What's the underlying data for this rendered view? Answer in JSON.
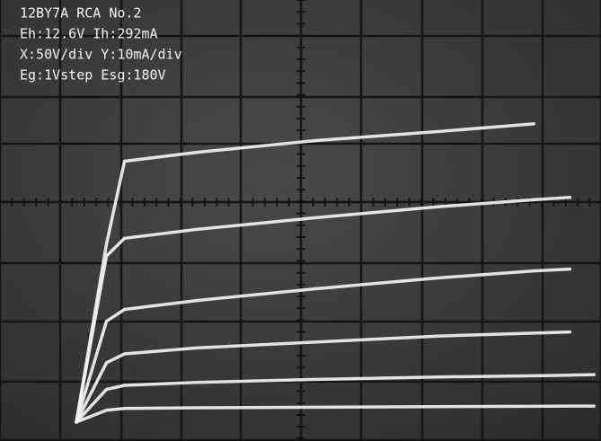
{
  "chart_data": {
    "type": "line",
    "annotations": [
      "12BY7A RCA No.2",
      "Eh:12.6V Ih:292mA",
      "X:50V/div Y:10mA/div",
      "Eg:1Vstep Esg:180V"
    ],
    "x": [
      0,
      25,
      40,
      100,
      200,
      300,
      380,
      410,
      430
    ],
    "series": [
      {
        "color": "#f2f2f2",
        "values": [
          0,
          30,
          44,
          45.5,
          47.5,
          49,
          50.3,
          null,
          null
        ]
      },
      {
        "color": "#f2f2f2",
        "values": [
          0,
          28,
          31,
          32.5,
          34.5,
          36.3,
          37.5,
          37.9,
          null
        ]
      },
      {
        "color": "#f2f2f2",
        "values": [
          0,
          17,
          19,
          20.5,
          22.5,
          24.3,
          25.5,
          25.8,
          null
        ]
      },
      {
        "color": "#f2f2f2",
        "values": [
          0,
          10,
          11.5,
          12.5,
          13.5,
          14.5,
          15,
          15.2,
          null
        ]
      },
      {
        "color": "#f2f2f2",
        "values": [
          0,
          5.5,
          6.2,
          6.7,
          7.2,
          7.6,
          7.8,
          7.9,
          8
        ]
      },
      {
        "color": "#f2f2f2",
        "values": [
          0,
          2,
          2.3,
          2.4,
          2.5,
          2.6,
          2.65,
          2.7,
          2.7
        ]
      }
    ],
    "xlim": [
      -63.4,
      435.8
    ],
    "ylim": [
      -3.2,
      71.2
    ]
  }
}
